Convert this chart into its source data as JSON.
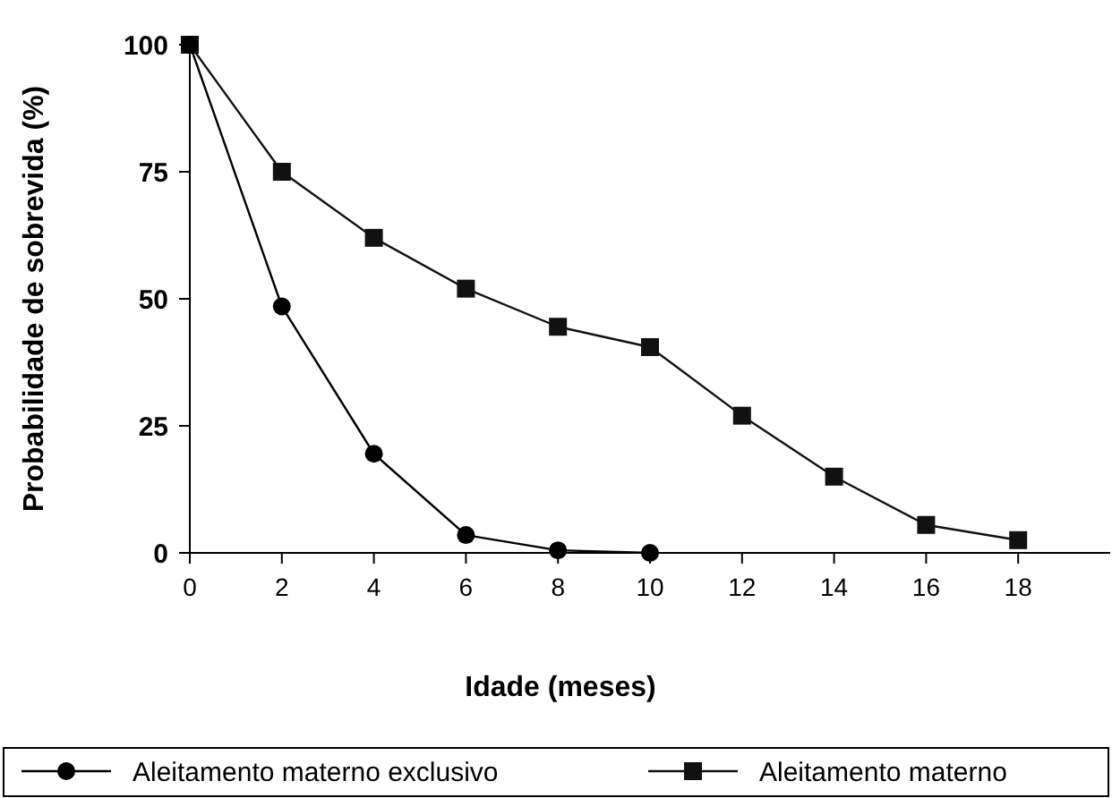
{
  "chart_data": {
    "type": "line",
    "xlabel": "Idade (meses)",
    "ylabel": "Probabilidade de sobrevida (%)",
    "xlim": [
      0,
      20
    ],
    "xticks": [
      0,
      2,
      4,
      6,
      8,
      10,
      12,
      14,
      16,
      18
    ],
    "ylim": [
      0,
      100
    ],
    "yticks": [
      0,
      25,
      50,
      75,
      100
    ],
    "grid": false,
    "legend": "bottom",
    "series": [
      {
        "name": "Aleitamento materno exclusivo",
        "color": "#000000",
        "marker": "circle",
        "x": [
          0,
          2,
          4,
          6,
          8,
          10
        ],
        "values": [
          100,
          48.5,
          19.5,
          3.5,
          0.5,
          0
        ]
      },
      {
        "name": "Aleitamento materno",
        "color": "#111111",
        "marker": "square",
        "x": [
          0,
          2,
          4,
          6,
          8,
          10,
          12,
          14,
          16,
          18
        ],
        "values": [
          100,
          75,
          62,
          52,
          44.5,
          40.5,
          27,
          15,
          5.5,
          2.5
        ]
      }
    ]
  }
}
